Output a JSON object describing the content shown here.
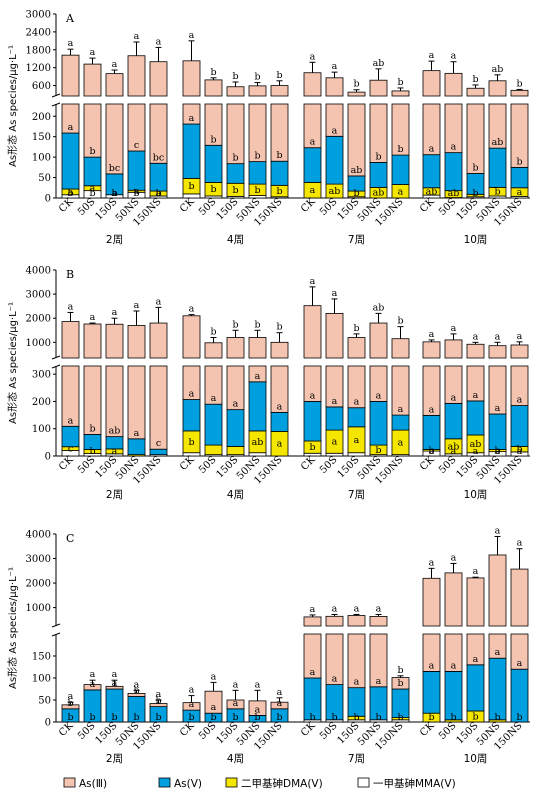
{
  "colors": {
    "as3": "#f5c4b0",
    "as5": "#00a0e0",
    "dma": "#f5e600",
    "mma": "#ffffff",
    "edge": "#000000"
  },
  "legend": [
    {
      "key": "as3",
      "label": "As(Ⅲ)"
    },
    {
      "key": "as5",
      "label": "As(Ⅴ)"
    },
    {
      "key": "dma",
      "label": "二甲基砷DMA(Ⅴ)"
    },
    {
      "key": "mma",
      "label": "一甲基砷MMA(Ⅴ)"
    }
  ],
  "chart_data": [
    {
      "type": "bar",
      "stacked": true,
      "panel": "A",
      "ylabel": "As形态 As species/μg·L⁻¹",
      "y_broken_axis": {
        "lower_ticks": [
          0,
          50,
          100,
          150,
          200
        ],
        "lower_range": [
          0,
          230
        ],
        "upper_ticks": [
          600,
          1200,
          1800,
          2400,
          3000
        ],
        "upper_range": [
          250,
          3000
        ],
        "upper_scale": "nonlinear"
      },
      "groups": [
        "2周",
        "4周",
        "7周",
        "10周"
      ],
      "categories": [
        "CK",
        "50S",
        "150S",
        "50NS",
        "150NS"
      ],
      "series": [
        {
          "name": "As(Ⅲ)",
          "key": "as3",
          "values": [
            [
              1620,
              1320,
              1000,
              1600,
              1400
            ],
            [
              1430,
              790,
              560,
              590,
              600
            ],
            [
              1030,
              860,
              380,
              780,
              420
            ],
            [
              1100,
              1010,
              510,
              760,
              440
            ]
          ]
        },
        {
          "name": "As(Ⅴ)",
          "key": "as5",
          "values": [
            [
              137,
              70,
              51,
              96,
              68
            ],
            [
              133,
              91,
              48,
              55,
              59
            ],
            [
              85,
              117,
              37,
              61,
              72
            ],
            [
              81,
              93,
              51,
              96,
              50
            ]
          ]
        },
        {
          "name": "二甲基砷DMA(Ⅴ)",
          "key": "dma",
          "values": [
            [
              14,
              12,
              0,
              5,
              12
            ],
            [
              38,
              33,
              32,
              28,
              28
            ],
            [
              38,
              34,
              14,
              26,
              33
            ],
            [
              18,
              17,
              6,
              21,
              21
            ]
          ]
        },
        {
          "name": "一甲基砷MMA(Ⅴ)",
          "key": "mma",
          "values": [
            [
              8,
              18,
              8,
              14,
              5
            ],
            [
              10,
              5,
              4,
              6,
              3
            ],
            [
              0,
              0,
              3,
              0,
              0
            ],
            [
              7,
              1,
              3,
              5,
              4
            ]
          ]
        }
      ],
      "totals": [
        [
          1620,
          1320,
          1000,
          1600,
          1400
        ],
        [
          1430,
          790,
          560,
          590,
          600
        ],
        [
          1030,
          860,
          380,
          780,
          420
        ],
        [
          1100,
          1010,
          510,
          760,
          440
        ]
      ],
      "error_tops": [
        [
          1820,
          1520,
          1120,
          2060,
          1880
        ],
        [
          2100,
          860,
          720,
          700,
          760
        ],
        [
          1380,
          1050,
          460,
          1160,
          520
        ],
        [
          1420,
          1400,
          620,
          960,
          470
        ]
      ],
      "labels_top": [
        [
          "a",
          "a",
          "a",
          "a",
          "a"
        ],
        [
          "a",
          "b",
          "b",
          "b",
          "b"
        ],
        [
          "a",
          "a",
          "b",
          "ab",
          "b"
        ],
        [
          "a",
          "a",
          "b",
          "ab",
          "b"
        ]
      ],
      "labels_as5": [
        [
          "a",
          "b",
          "bc",
          "c",
          "bc"
        ],
        [
          "a",
          "b",
          "b",
          "b",
          "b"
        ],
        [
          "a",
          "a",
          "ab",
          "b",
          "b"
        ],
        [
          "a",
          "a",
          "b",
          "ab",
          "b"
        ]
      ],
      "labels_dma": [
        [
          "a",
          "a",
          "a",
          "a",
          "a"
        ],
        [
          "b",
          "b",
          "b",
          "b",
          "b"
        ],
        [
          "a",
          "ab",
          "b",
          "ab",
          "a"
        ],
        [
          "ab",
          "ab",
          "b",
          "b",
          "a"
        ]
      ],
      "labels_mma": [
        [
          "b",
          "b",
          "b",
          "b",
          "b"
        ],
        [],
        [],
        []
      ]
    },
    {
      "type": "bar",
      "stacked": true,
      "panel": "B",
      "ylabel": "As形态 As species/μg·L⁻¹",
      "y_broken_axis": {
        "lower_ticks": [
          0,
          100,
          200,
          300
        ],
        "lower_range": [
          0,
          330
        ],
        "upper_ticks": [
          1000,
          2000,
          3000,
          4000
        ],
        "upper_range": [
          350,
          4000
        ]
      },
      "groups": [
        "2周",
        "4周",
        "7周",
        "10周"
      ],
      "categories": [
        "CK",
        "50S",
        "150S",
        "50NS",
        "150NS"
      ],
      "series": [
        {
          "name": "As(Ⅲ)",
          "key": "as3",
          "values": [
            [
              1860,
              1760,
              1750,
              1700,
              1800
            ],
            [
              2100,
              980,
              1200,
              1200,
              1000
            ],
            [
              2520,
              2200,
              1200,
              1800,
              1150
            ],
            [
              1020,
              1100,
              920,
              860,
              890
            ]
          ]
        },
        {
          "name": "As(Ⅴ)",
          "key": "as5",
          "values": [
            [
              75,
              55,
              45,
              58,
              20
            ],
            [
              115,
              150,
              135,
              180,
              70
            ],
            [
              145,
              85,
              70,
              160,
              55
            ],
            [
              125,
              130,
              125,
              130,
              150
            ]
          ]
        },
        {
          "name": "二甲基砷DMA(Ⅴ)",
          "key": "dma",
          "values": [
            [
              14,
              15,
              18,
              5,
              0
            ],
            [
              80,
              35,
              30,
              80,
              90
            ],
            [
              45,
              85,
              95,
              35,
              90
            ],
            [
              6,
              55,
              65,
              8,
              20
            ]
          ]
        },
        {
          "name": "一甲基砷MMA(Ⅴ)",
          "key": "mma",
          "values": [
            [
              20,
              9,
              8,
              0,
              5
            ],
            [
              12,
              5,
              5,
              12,
              0
            ],
            [
              10,
              10,
              12,
              5,
              5
            ],
            [
              18,
              8,
              12,
              16,
              15
            ]
          ]
        }
      ],
      "totals": [
        [
          1860,
          1760,
          1750,
          1700,
          1800
        ],
        [
          2100,
          980,
          1200,
          1200,
          1000
        ],
        [
          2520,
          2200,
          1200,
          1800,
          1150
        ],
        [
          1020,
          1100,
          920,
          860,
          890
        ]
      ],
      "error_tops": [
        [
          2240,
          1800,
          2000,
          2300,
          2450
        ],
        [
          2150,
          1200,
          1500,
          1500,
          1400
        ],
        [
          3300,
          2800,
          1350,
          2200,
          1650
        ],
        [
          1100,
          1350,
          1000,
          1000,
          1020
        ]
      ],
      "labels_top": [
        [
          "a",
          "a",
          "a",
          "a",
          "a"
        ],
        [
          "a",
          "b",
          "b",
          "b",
          "b"
        ],
        [
          "a",
          "a",
          "b",
          "ab",
          "b"
        ],
        [
          "a",
          "a",
          "a",
          "a",
          "a"
        ]
      ],
      "labels_as5": [
        [
          "a",
          "b",
          "ab",
          "a",
          "c"
        ],
        [
          "a",
          "a",
          "a",
          "a",
          "a"
        ],
        [
          "a",
          "a",
          "a",
          "a",
          "a"
        ],
        [
          "a",
          "a",
          "a",
          "a",
          "a"
        ]
      ],
      "labels_dma": [
        [
          "c",
          "b",
          "a",
          "",
          ""
        ],
        [
          "b",
          "",
          "",
          "ab",
          "a"
        ],
        [
          "b",
          "a",
          "a",
          "b",
          "a"
        ],
        [
          "b",
          "ab",
          "ab",
          "b",
          "b"
        ]
      ],
      "labels_mma": [
        [],
        [],
        [],
        [
          "a",
          "a",
          "a",
          "a",
          "a"
        ]
      ]
    },
    {
      "type": "bar",
      "stacked": true,
      "panel": "C",
      "ylabel": "As形态 As species/μg·L⁻¹",
      "y_broken_axis": {
        "lower_ticks": [
          0,
          50,
          100,
          150
        ],
        "lower_range": [
          0,
          200
        ],
        "upper_ticks": [
          1000,
          2000,
          3000,
          4000
        ],
        "upper_range": [
          250,
          4000
        ]
      },
      "groups": [
        "2周",
        "4周",
        "7周",
        "10周"
      ],
      "categories": [
        "CK",
        "50S",
        "150S",
        "50NS",
        "150NS"
      ],
      "series": [
        {
          "name": "As(Ⅲ)",
          "key": "as3",
          "values": [
            [
              9,
              12,
              6,
              7,
              7
            ],
            [
              17,
              50,
              20,
              33,
              15
            ],
            [
              520,
              560,
              600,
              560,
              26
            ],
            [
              2080,
              2300,
              2080,
              3000,
              2450
            ]
          ]
        },
        {
          "name": "As(Ⅴ)",
          "key": "as5",
          "values": [
            [
              30,
              73,
              75,
              58,
              35
            ],
            [
              27,
              20,
              30,
              15,
              30
            ],
            [
              95,
              80,
              65,
              75,
              65
            ],
            [
              95,
              110,
              105,
              140,
              120
            ]
          ]
        },
        {
          "name": "二甲基砷DMA(Ⅴ)",
          "key": "dma",
          "values": [
            [
              0,
              0,
              0,
              0,
              0
            ],
            [
              0,
              0,
              0,
              0,
              0
            ],
            [
              0,
              0,
              8,
              0,
              5
            ],
            [
              20,
              5,
              25,
              5,
              0
            ]
          ]
        },
        {
          "name": "一甲基砷MMA(Ⅴ)",
          "key": "mma",
          "values": [
            [
              0,
              0,
              0,
              0,
              0
            ],
            [
              0,
              0,
              0,
              0,
              0
            ],
            [
              5,
              5,
              5,
              5,
              5
            ],
            [
              0,
              0,
              0,
              0,
              0
            ]
          ]
        }
      ],
      "totals": [
        [
          39,
          85,
          81,
          65,
          42
        ],
        [
          44,
          70,
          50,
          48,
          45
        ],
        [
          620,
          645,
          678,
          640,
          101
        ],
        [
          2195,
          2415,
          2210,
          3145,
          2570
        ]
      ],
      "error_tops": [
        [
          45,
          95,
          95,
          72,
          50
        ],
        [
          60,
          90,
          72,
          72,
          55
        ],
        [
          700,
          720,
          720,
          720,
          105
        ],
        [
          2600,
          2800,
          2240,
          3900,
          3400
        ]
      ],
      "labels_top": [
        [
          "a",
          "a",
          "a",
          "a",
          "a"
        ],
        [
          "a",
          "a",
          "a",
          "a",
          "a"
        ],
        [
          "a",
          "a",
          "a",
          "a",
          "b"
        ],
        [
          "a",
          "a",
          "a",
          "a",
          "a"
        ]
      ],
      "labels_as5": [
        [
          "b",
          "a",
          "a",
          "b",
          "b"
        ],
        [
          "a",
          "a",
          "a",
          "a",
          "a"
        ],
        [
          "a",
          "a",
          "a",
          "a",
          "b"
        ],
        [
          "a",
          "a",
          "a",
          "a",
          "a"
        ]
      ],
      "labels_dma": [
        [
          "b",
          "b",
          "b",
          "b",
          "b"
        ],
        [
          "b",
          "b",
          "b",
          "b",
          "b"
        ],
        [
          "b",
          "b",
          "b",
          "b",
          "b"
        ],
        [
          "b",
          "b",
          "b",
          "b",
          "b"
        ]
      ],
      "labels_mma": [
        [],
        [],
        [],
        []
      ]
    }
  ]
}
